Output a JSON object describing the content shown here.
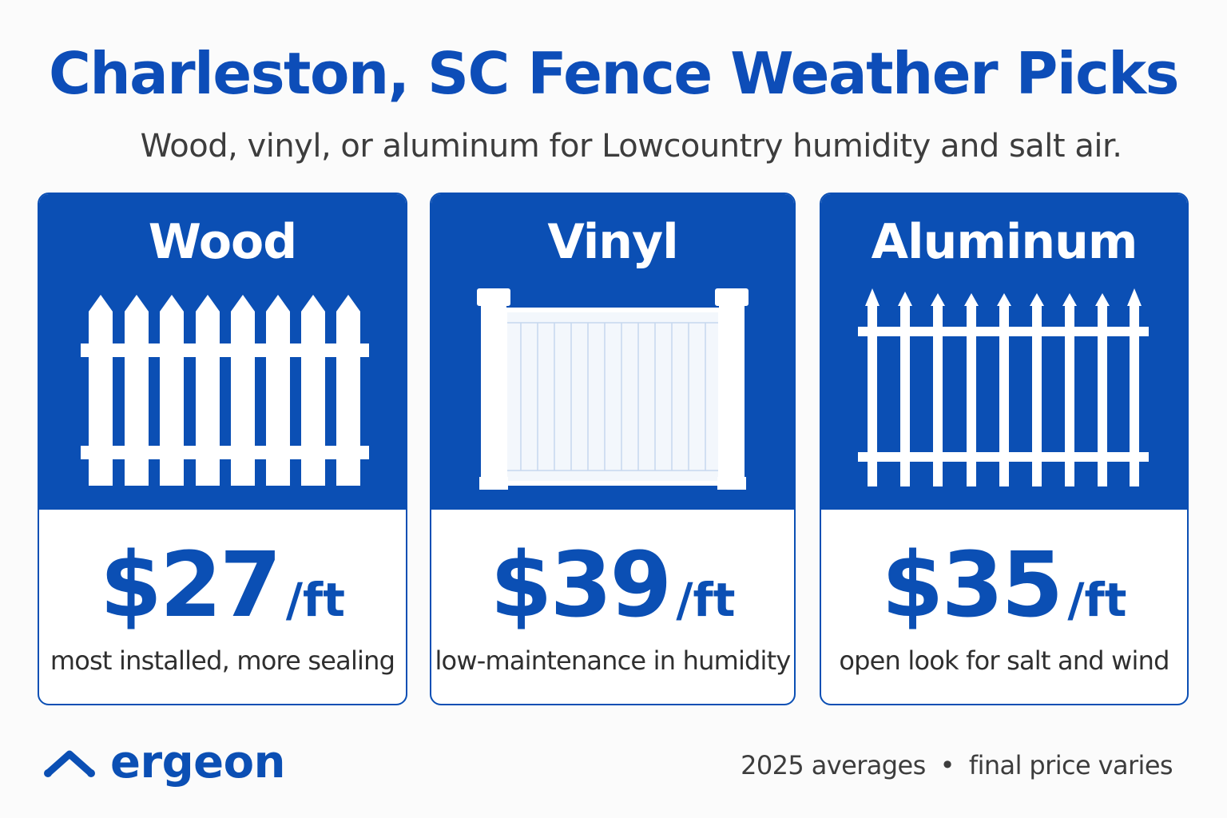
{
  "header": {
    "title": "Charleston, SC Fence Weather Picks",
    "subtitle": "Wood, vinyl, or aluminum for Lowcountry humidity and salt air."
  },
  "cards": [
    {
      "name": "Wood",
      "price": "$27",
      "unit": "/ft",
      "note": "most installed, more sealing",
      "icon": "picket-fence-icon"
    },
    {
      "name": "Vinyl",
      "price": "$39",
      "unit": "/ft",
      "note": "low-maintenance in humidity",
      "icon": "vinyl-privacy-fence-icon"
    },
    {
      "name": "Aluminum",
      "price": "$35",
      "unit": "/ft",
      "note": "open look for salt and wind",
      "icon": "aluminum-spear-fence-icon"
    }
  ],
  "footer": {
    "brand": "ergeon",
    "brand_icon": "roof-chevron-icon",
    "note_left": "2025 averages",
    "separator": "•",
    "note_right": "final price varies"
  },
  "colors": {
    "brand_blue": "#0b4fb4",
    "title_blue": "#0d4db8",
    "text_dark": "#2f2f2f",
    "background": "#fbfbfb"
  }
}
